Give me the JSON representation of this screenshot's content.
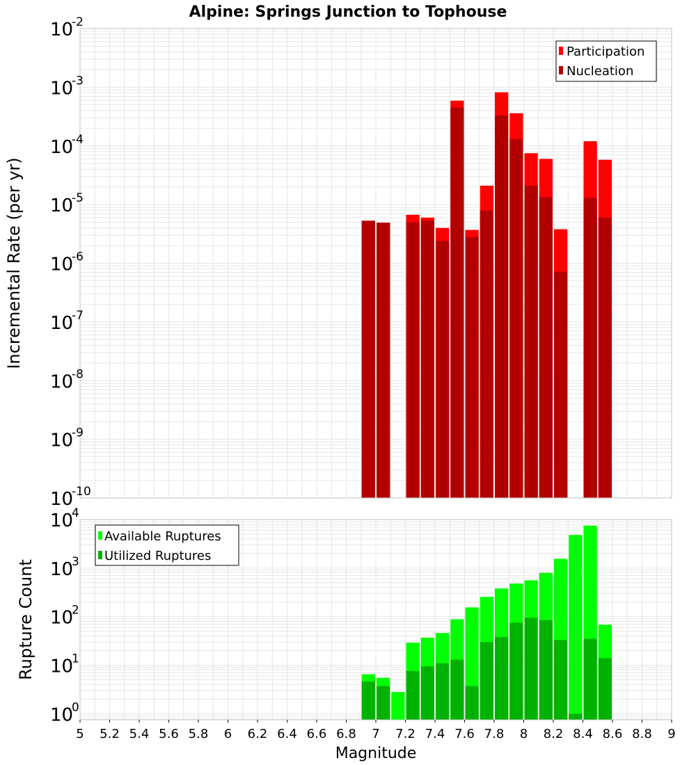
{
  "title": "Alpine: Springs Junction to Tophouse",
  "colors": {
    "participation": "#ff0000",
    "nucleation": "#b20000",
    "available": "#00ff00",
    "utilized": "#00b200",
    "grid": "#e6e6e6",
    "frame": "#c0c0c0"
  },
  "chart_data": [
    {
      "type": "bar",
      "subtype": "stacked-overlay-log",
      "xlabel": "Magnitude",
      "ylabel": "Incremental Rate (per yr)",
      "xlim": [
        5,
        9
      ],
      "ylim": [
        1e-10,
        0.01
      ],
      "log_y": true,
      "grid": true,
      "legend_position": "top-right",
      "y_ticks": [
        {
          "base": "10",
          "exp": "-2",
          "value": 0.01
        },
        {
          "base": "10",
          "exp": "-3",
          "value": 0.001
        },
        {
          "base": "10",
          "exp": "-4",
          "value": 0.0001
        },
        {
          "base": "10",
          "exp": "-5",
          "value": 1e-05
        },
        {
          "base": "10",
          "exp": "-6",
          "value": 1e-06
        },
        {
          "base": "10",
          "exp": "-7",
          "value": 1e-07
        },
        {
          "base": "10",
          "exp": "-8",
          "value": 1e-08
        },
        {
          "base": "10",
          "exp": "-9",
          "value": 1e-09
        },
        {
          "base": "10",
          "exp": "-10",
          "value": 1e-10
        }
      ],
      "x": [
        6.95,
        7.05,
        7.25,
        7.35,
        7.45,
        7.55,
        7.65,
        7.75,
        7.85,
        7.95,
        8.05,
        8.15,
        8.25,
        8.45,
        8.55
      ],
      "series": [
        {
          "name": "Participation",
          "color_key": "participation",
          "values": [
            5.3e-06,
            4.9e-06,
            6.7e-06,
            6e-06,
            4e-06,
            0.00059,
            3.7e-06,
            2.1e-05,
            0.00082,
            0.00036,
            7.5e-05,
            6e-05,
            3.8e-06,
            0.00012,
            5.8e-05
          ]
        },
        {
          "name": "Nucleation",
          "color_key": "nucleation",
          "values": [
            5.3e-06,
            4.9e-06,
            5e-06,
            5.3e-06,
            2.4e-06,
            0.00045,
            2.8e-06,
            7.9e-06,
            0.00033,
            0.00013,
            2.1e-05,
            1.35e-05,
            7.2e-07,
            1.3e-05,
            6e-06
          ]
        }
      ]
    },
    {
      "type": "bar",
      "subtype": "stacked-overlay-log",
      "xlabel": "Magnitude",
      "ylabel": "Rupture Count",
      "xlim": [
        5,
        9
      ],
      "ylim": [
        0.75,
        10000
      ],
      "log_y": true,
      "grid": true,
      "legend_position": "top-left",
      "y_ticks": [
        {
          "base": "10",
          "exp": "4",
          "value": 10000
        },
        {
          "base": "10",
          "exp": "3",
          "value": 1000
        },
        {
          "base": "10",
          "exp": "2",
          "value": 100
        },
        {
          "base": "10",
          "exp": "1",
          "value": 10
        },
        {
          "base": "10",
          "exp": "0",
          "value": 1
        }
      ],
      "x_ticks": [
        "5",
        "5.2",
        "5.4",
        "5.6",
        "5.8",
        "6",
        "6.2",
        "6.4",
        "6.6",
        "6.8",
        "7",
        "7.2",
        "7.4",
        "7.6",
        "7.8",
        "8",
        "8.2",
        "8.4",
        "8.6",
        "8.8",
        "9"
      ],
      "x": [
        6.95,
        7.05,
        7.15,
        7.25,
        7.35,
        7.45,
        7.55,
        7.65,
        7.75,
        7.85,
        7.95,
        8.05,
        8.15,
        8.25,
        8.35,
        8.45,
        8.55
      ],
      "series": [
        {
          "name": "Available Ruptures",
          "color_key": "available",
          "values": [
            6.5,
            5.5,
            2.8,
            29,
            37,
            46,
            88,
            155,
            255,
            380,
            480,
            560,
            800,
            1550,
            4800,
            7500,
            68
          ]
        },
        {
          "name": "Utilized Ruptures",
          "color_key": "utilized",
          "values": [
            4.6,
            3.7,
            0,
            7.6,
            9.5,
            11,
            13,
            3.7,
            30,
            38,
            75,
            95,
            85,
            33,
            1.0,
            35,
            14
          ]
        }
      ]
    }
  ]
}
